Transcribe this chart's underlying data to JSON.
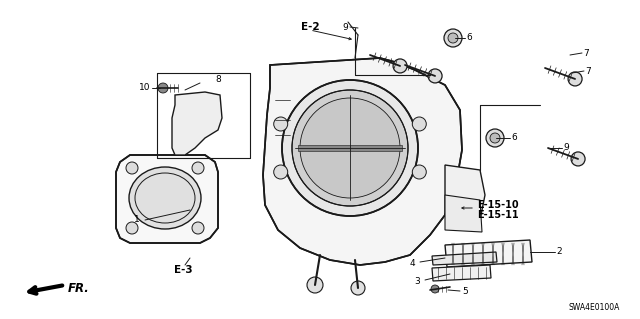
{
  "diagram_code": "SWA4E0100A",
  "background_color": "#ffffff",
  "line_color": "#1a1a1a",
  "figsize": [
    6.4,
    3.19
  ],
  "dpi": 100,
  "xlim": [
    0,
    640
  ],
  "ylim": [
    0,
    319
  ]
}
